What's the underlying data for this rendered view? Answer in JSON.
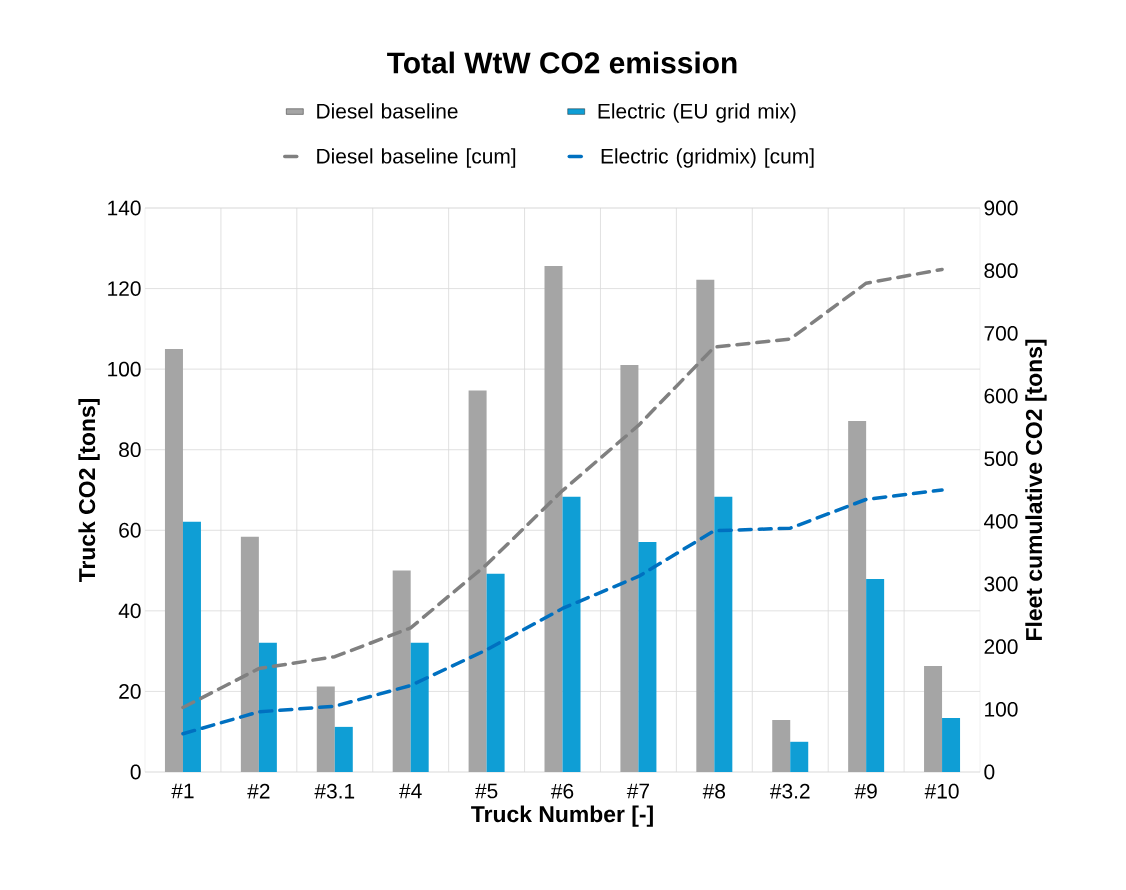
{
  "chart_data": {
    "type": "bar",
    "title": "Total WtW CO2 emission",
    "xlabel": "Truck Number [-]",
    "ylabel": "Truck CO2 [tons]",
    "y2label": "Fleet cumulative CO2 [tons]",
    "categories": [
      "#1",
      "#2",
      "#3.1",
      "#4",
      "#5",
      "#6",
      "#7",
      "#8",
      "#3.2",
      "#9",
      "#10"
    ],
    "series": [
      {
        "name": "Diesel baseline",
        "color": "#a5a5a5",
        "values": [
          105,
          58.4,
          21.2,
          50,
          94.7,
          125.6,
          101,
          122.2,
          12.9,
          87.1,
          26.3
        ]
      },
      {
        "name": "Electric (EU grid mix)",
        "color": "#0f9ed5",
        "values": [
          62.1,
          32.1,
          11.2,
          32.1,
          49.2,
          68.3,
          57.1,
          68.3,
          7.5,
          47.9,
          13.4
        ]
      },
      {
        "name": "Diesel baseline [cum]",
        "type": "line",
        "axis": "y2",
        "line_style": "dashed",
        "color": "#808080",
        "values": [
          103,
          165,
          184,
          230,
          331,
          449,
          553,
          678,
          691,
          780,
          802
        ]
      },
      {
        "name": "Electric (gridmix) [cum]",
        "type": "line",
        "axis": "y2",
        "line_style": "dashed",
        "color": "#0070c0",
        "values": [
          61,
          96,
          105,
          138,
          195,
          261,
          312,
          385,
          389,
          435,
          450
        ]
      }
    ],
    "ylim": [
      0,
      140
    ],
    "yticks": [
      0,
      20,
      40,
      60,
      80,
      100,
      120,
      140
    ],
    "y2lim": [
      0,
      900
    ],
    "y2ticks": [
      0,
      100,
      200,
      300,
      400,
      500,
      600,
      700,
      800,
      900
    ],
    "grid": true,
    "legend": "top"
  }
}
